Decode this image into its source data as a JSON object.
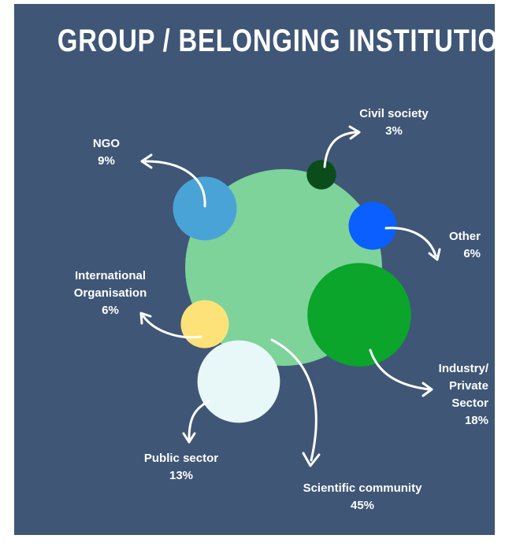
{
  "chart_data": {
    "type": "bubble",
    "title": "GROUP / BELONGING INSTITUTION",
    "categories": [
      "Scientific community",
      "Industry/ Private Sector",
      "Public sector",
      "NGO",
      "Other",
      "International Organisation",
      "Civil society"
    ],
    "values": [
      45,
      18,
      13,
      9,
      6,
      6,
      3
    ],
    "value_labels": [
      "45%",
      "18%",
      "13%",
      "9%",
      "6%",
      "6%",
      "3%"
    ],
    "colors": [
      "#7dd39a",
      "#0aa52a",
      "#e8f8f8",
      "#4aa3d6",
      "#0b5fff",
      "#fde27a",
      "#0b4d1a"
    ]
  }
}
